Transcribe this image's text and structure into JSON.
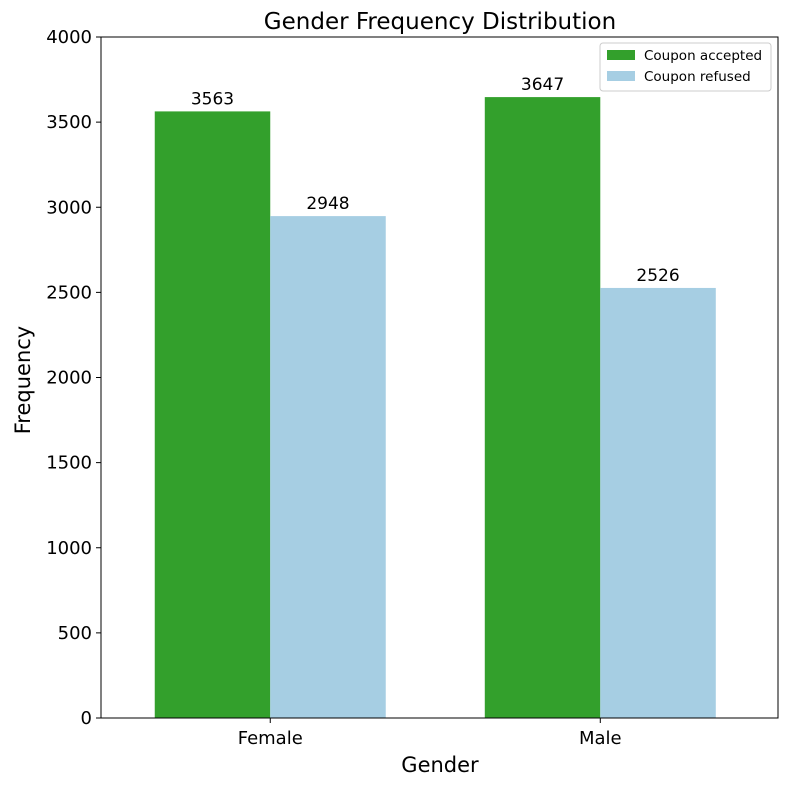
{
  "chart_data": {
    "type": "bar",
    "title": "Gender Frequency Distribution",
    "xlabel": "Gender",
    "ylabel": "Frequency",
    "categories": [
      "Female",
      "Male"
    ],
    "series": [
      {
        "name": "Coupon accepted",
        "values": [
          3563,
          3647
        ],
        "color": "#33a02c"
      },
      {
        "name": "Coupon refused",
        "values": [
          2948,
          2526
        ],
        "color": "#a6cee3"
      }
    ],
    "ylim": [
      0,
      4000
    ],
    "yticks": [
      0,
      500,
      1000,
      1500,
      2000,
      2500,
      3000,
      3500,
      4000
    ],
    "data_labels": true,
    "grid": false,
    "legend_position": "top-right"
  }
}
